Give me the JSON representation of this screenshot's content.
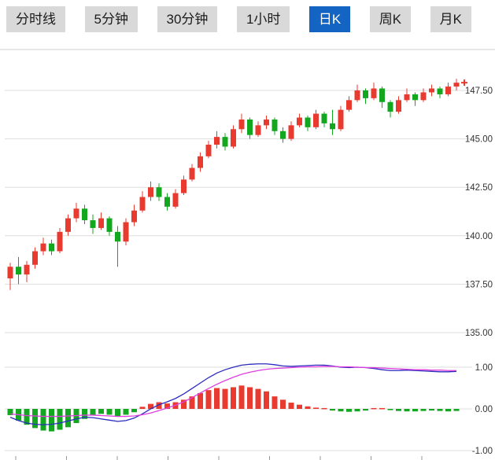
{
  "tabs": [
    {
      "label": "分时线",
      "active": false
    },
    {
      "label": "5分钟",
      "active": false
    },
    {
      "label": "30分钟",
      "active": false
    },
    {
      "label": "1小时",
      "active": false
    },
    {
      "label": "日K",
      "active": true
    },
    {
      "label": "周K",
      "active": false
    },
    {
      "label": "月K",
      "active": false
    }
  ],
  "colors": {
    "up": "#e93a2f",
    "down": "#13a71f",
    "tab_bg": "#d9d9d9",
    "tab_active_bg": "#1464c3",
    "grid": "#dedede",
    "axis_text": "#333333",
    "dif_line": "#2b2bbf",
    "dea_line": "#de3ede"
  },
  "chart_data": {
    "type": "candlestick+macd",
    "title": "",
    "price_axis_labels": [
      "147.50",
      "145.00",
      "142.50",
      "140.00",
      "137.50",
      "135.00"
    ],
    "macd_axis_labels": [
      "1.00",
      "0.00",
      "-1.00"
    ],
    "last_price": 147.9,
    "candles": [
      [
        137.8,
        138.6,
        137.2,
        138.4
      ],
      [
        138.4,
        138.9,
        137.5,
        138.0
      ],
      [
        138.0,
        138.7,
        137.6,
        138.5
      ],
      [
        138.5,
        139.4,
        138.3,
        139.2
      ],
      [
        139.2,
        139.9,
        139.0,
        139.6
      ],
      [
        139.6,
        139.8,
        139.0,
        139.2
      ],
      [
        139.2,
        140.4,
        139.1,
        140.2
      ],
      [
        140.2,
        141.1,
        140.0,
        140.9
      ],
      [
        140.9,
        141.7,
        140.7,
        141.4
      ],
      [
        141.4,
        141.6,
        140.6,
        140.8
      ],
      [
        140.8,
        141.1,
        140.1,
        140.4
      ],
      [
        140.4,
        141.2,
        140.3,
        140.9
      ],
      [
        140.9,
        141.0,
        140.0,
        140.2
      ],
      [
        140.2,
        140.5,
        138.4,
        139.7
      ],
      [
        139.7,
        140.9,
        139.5,
        140.7
      ],
      [
        140.7,
        141.6,
        140.5,
        141.3
      ],
      [
        141.3,
        142.3,
        141.2,
        142.0
      ],
      [
        142.0,
        142.8,
        141.8,
        142.5
      ],
      [
        142.5,
        142.7,
        141.8,
        142.0
      ],
      [
        142.0,
        142.2,
        141.3,
        141.5
      ],
      [
        141.5,
        142.4,
        141.4,
        142.2
      ],
      [
        142.2,
        143.1,
        142.1,
        142.9
      ],
      [
        142.9,
        143.7,
        142.8,
        143.5
      ],
      [
        143.5,
        144.3,
        143.3,
        144.1
      ],
      [
        144.1,
        144.9,
        144.0,
        144.7
      ],
      [
        144.7,
        145.4,
        144.5,
        145.1
      ],
      [
        145.1,
        145.3,
        144.4,
        144.6
      ],
      [
        144.6,
        145.7,
        144.5,
        145.5
      ],
      [
        145.5,
        146.3,
        145.3,
        146.0
      ],
      [
        146.0,
        146.1,
        145.0,
        145.2
      ],
      [
        145.2,
        145.9,
        145.1,
        145.7
      ],
      [
        145.7,
        146.2,
        145.5,
        146.0
      ],
      [
        146.0,
        146.1,
        145.2,
        145.4
      ],
      [
        145.4,
        145.6,
        144.8,
        145.0
      ],
      [
        145.0,
        145.9,
        144.9,
        145.7
      ],
      [
        145.7,
        146.3,
        145.6,
        146.1
      ],
      [
        146.1,
        146.2,
        145.4,
        145.6
      ],
      [
        145.6,
        146.5,
        145.5,
        146.3
      ],
      [
        146.3,
        146.4,
        145.6,
        145.8
      ],
      [
        145.8,
        146.5,
        145.2,
        145.5
      ],
      [
        145.5,
        146.7,
        145.4,
        146.5
      ],
      [
        146.5,
        147.2,
        146.4,
        147.0
      ],
      [
        147.0,
        147.8,
        146.9,
        147.5
      ],
      [
        147.5,
        147.6,
        146.8,
        147.1
      ],
      [
        147.1,
        147.9,
        147.0,
        147.6
      ],
      [
        147.6,
        147.7,
        146.6,
        146.9
      ],
      [
        146.9,
        147.0,
        146.1,
        146.4
      ],
      [
        146.4,
        147.2,
        146.3,
        147.0
      ],
      [
        147.0,
        147.6,
        146.9,
        147.3
      ],
      [
        147.3,
        147.4,
        146.7,
        147.0
      ],
      [
        147.0,
        147.6,
        146.9,
        147.4
      ],
      [
        147.4,
        147.8,
        147.2,
        147.6
      ],
      [
        147.6,
        147.7,
        147.1,
        147.3
      ],
      [
        147.3,
        147.9,
        147.2,
        147.7
      ],
      [
        147.7,
        148.1,
        147.5,
        147.9
      ]
    ],
    "macd": {
      "histogram": [
        -0.15,
        -0.28,
        -0.38,
        -0.46,
        -0.52,
        -0.54,
        -0.5,
        -0.44,
        -0.34,
        -0.24,
        -0.16,
        -0.12,
        -0.14,
        -0.18,
        -0.14,
        -0.08,
        0.05,
        0.12,
        0.16,
        0.13,
        0.16,
        0.22,
        0.3,
        0.38,
        0.45,
        0.5,
        0.48,
        0.52,
        0.56,
        0.52,
        0.48,
        0.42,
        0.3,
        0.22,
        0.15,
        0.1,
        0.06,
        0.03,
        0.02,
        -0.04,
        -0.06,
        -0.07,
        -0.06,
        -0.04,
        0.02,
        0.02,
        -0.03,
        -0.05,
        -0.06,
        -0.06,
        -0.05,
        -0.04,
        -0.05,
        -0.06,
        -0.05
      ],
      "dif": [
        -0.2,
        -0.28,
        -0.34,
        -0.37,
        -0.38,
        -0.37,
        -0.34,
        -0.29,
        -0.24,
        -0.2,
        -0.21,
        -0.24,
        -0.27,
        -0.3,
        -0.28,
        -0.22,
        -0.12,
        0.0,
        0.1,
        0.17,
        0.25,
        0.36,
        0.49,
        0.62,
        0.75,
        0.86,
        0.94,
        1.0,
        1.05,
        1.07,
        1.08,
        1.08,
        1.06,
        1.03,
        1.02,
        1.03,
        1.04,
        1.05,
        1.05,
        1.03,
        1.0,
        0.99,
        1.0,
        0.99,
        0.97,
        0.94,
        0.92,
        0.92,
        0.93,
        0.92,
        0.91,
        0.9,
        0.89,
        0.89,
        0.9
      ],
      "dea": [
        -0.12,
        -0.14,
        -0.16,
        -0.17,
        -0.18,
        -0.18,
        -0.18,
        -0.17,
        -0.16,
        -0.15,
        -0.15,
        -0.16,
        -0.17,
        -0.18,
        -0.18,
        -0.17,
        -0.14,
        -0.1,
        -0.04,
        0.02,
        0.09,
        0.17,
        0.27,
        0.38,
        0.49,
        0.59,
        0.68,
        0.76,
        0.83,
        0.88,
        0.92,
        0.95,
        0.97,
        0.98,
        0.99,
        1.0,
        1.01,
        1.01,
        1.02,
        1.02,
        1.01,
        1.01,
        1.0,
        0.99,
        0.99,
        0.98,
        0.97,
        0.96,
        0.95,
        0.94,
        0.94,
        0.93,
        0.93,
        0.92,
        0.92
      ]
    }
  }
}
